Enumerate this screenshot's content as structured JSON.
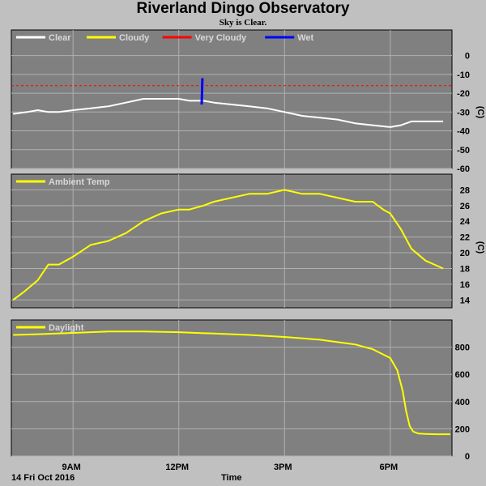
{
  "header": {
    "title": "Riverland Dingo Observatory",
    "subtitle": "Sky is Clear."
  },
  "footer": {
    "date": "14 Fri Oct 2016",
    "xlabel": "Time"
  },
  "colors": {
    "plot_bg": "#808080",
    "page_bg": "#c0c0c0",
    "grid": "#b0b0b0",
    "clear": "#ffffff",
    "cloudy": "#ffff00",
    "very_cloudy": "#ff0000",
    "wet": "#0000ff",
    "temp": "#ffff00",
    "daylight": "#ffff00"
  },
  "chart_data": [
    {
      "type": "line",
      "name": "sky",
      "x_ticks": [
        {
          "value": 9,
          "label": "9AM"
        },
        {
          "value": 12,
          "label": "12PM"
        },
        {
          "value": 15,
          "label": "3PM"
        },
        {
          "value": 18,
          "label": "6PM"
        }
      ],
      "xlim": [
        7.25,
        19.75
      ],
      "ylim": [
        -60,
        5
      ],
      "yticks": [
        0,
        -10,
        -20,
        -30,
        -40,
        -50,
        -60
      ],
      "ylabel": "(C)",
      "grid": true,
      "legend": [
        {
          "label": "Clear",
          "color": "#ffffff"
        },
        {
          "label": "Cloudy",
          "color": "#ffff00"
        },
        {
          "label": "Very Cloudy",
          "color": "#ff0000"
        },
        {
          "label": "Wet",
          "color": "#0000ff"
        }
      ],
      "thresholds": [
        {
          "name": "Very Cloudy",
          "value": -16
        }
      ],
      "series": [
        {
          "name": "Clear",
          "x": [
            7.3,
            7.7,
            8.0,
            8.3,
            8.6,
            9.0,
            9.5,
            10.0,
            10.5,
            11.0,
            11.5,
            12.0,
            12.3,
            12.7,
            13.0,
            13.5,
            14.0,
            14.5,
            15.0,
            15.5,
            16.0,
            16.5,
            17.0,
            17.5,
            18.0,
            18.3,
            18.6,
            19.0,
            19.5
          ],
          "y": [
            -31,
            -30,
            -29,
            -30,
            -30,
            -29,
            -28,
            -27,
            -25,
            -23,
            -23,
            -23,
            -24,
            -24,
            -25,
            -26,
            -27,
            -28,
            -30,
            -32,
            -33,
            -34,
            -36,
            -37,
            -38,
            -37,
            -35,
            -35,
            -35
          ]
        },
        {
          "name": "Wet",
          "x": [
            12.65,
            12.67
          ],
          "y": [
            -26,
            -12
          ]
        }
      ]
    },
    {
      "type": "line",
      "name": "ambient",
      "xlim": [
        7.25,
        19.75
      ],
      "ylim": [
        13,
        30
      ],
      "yticks": [
        14,
        16,
        18,
        20,
        22,
        24,
        26,
        28
      ],
      "ylabel": "(C)",
      "grid": true,
      "legend": [
        {
          "label": "Ambient Temp",
          "color": "#ffff00"
        }
      ],
      "series": [
        {
          "name": "Ambient Temp",
          "x": [
            7.3,
            7.6,
            8.0,
            8.3,
            8.6,
            9.0,
            9.5,
            10.0,
            10.5,
            11.0,
            11.5,
            12.0,
            12.3,
            12.7,
            13.0,
            13.5,
            14.0,
            14.5,
            15.0,
            15.5,
            16.0,
            16.5,
            17.0,
            17.5,
            17.8,
            18.0,
            18.3,
            18.6,
            19.0,
            19.5
          ],
          "y": [
            14,
            15,
            16.5,
            18.5,
            18.5,
            19.5,
            21,
            21.5,
            22.5,
            24,
            25,
            25.5,
            25.5,
            26,
            26.5,
            27,
            27.5,
            27.5,
            28,
            27.5,
            27.5,
            27,
            26.5,
            26.5,
            25.5,
            25,
            23,
            20.5,
            19,
            18
          ]
        }
      ]
    },
    {
      "type": "line",
      "name": "daylight",
      "xlim": [
        7.25,
        19.75
      ],
      "ylim": [
        0,
        1000
      ],
      "yticks": [
        0,
        200,
        400,
        600,
        800
      ],
      "grid": true,
      "legend": [
        {
          "label": "Daylight",
          "color": "#ffff00"
        }
      ],
      "series": [
        {
          "name": "Daylight",
          "x": [
            7.3,
            8.0,
            9.0,
            10.0,
            11.0,
            12.0,
            13.0,
            14.0,
            15.0,
            16.0,
            17.0,
            17.5,
            18.0,
            18.2,
            18.35,
            18.45,
            18.55,
            18.65,
            18.8,
            19.0,
            19.3,
            19.7
          ],
          "y": [
            890,
            895,
            905,
            915,
            915,
            910,
            900,
            890,
            875,
            855,
            820,
            785,
            720,
            630,
            480,
            330,
            220,
            180,
            165,
            162,
            160,
            160
          ]
        }
      ]
    }
  ]
}
